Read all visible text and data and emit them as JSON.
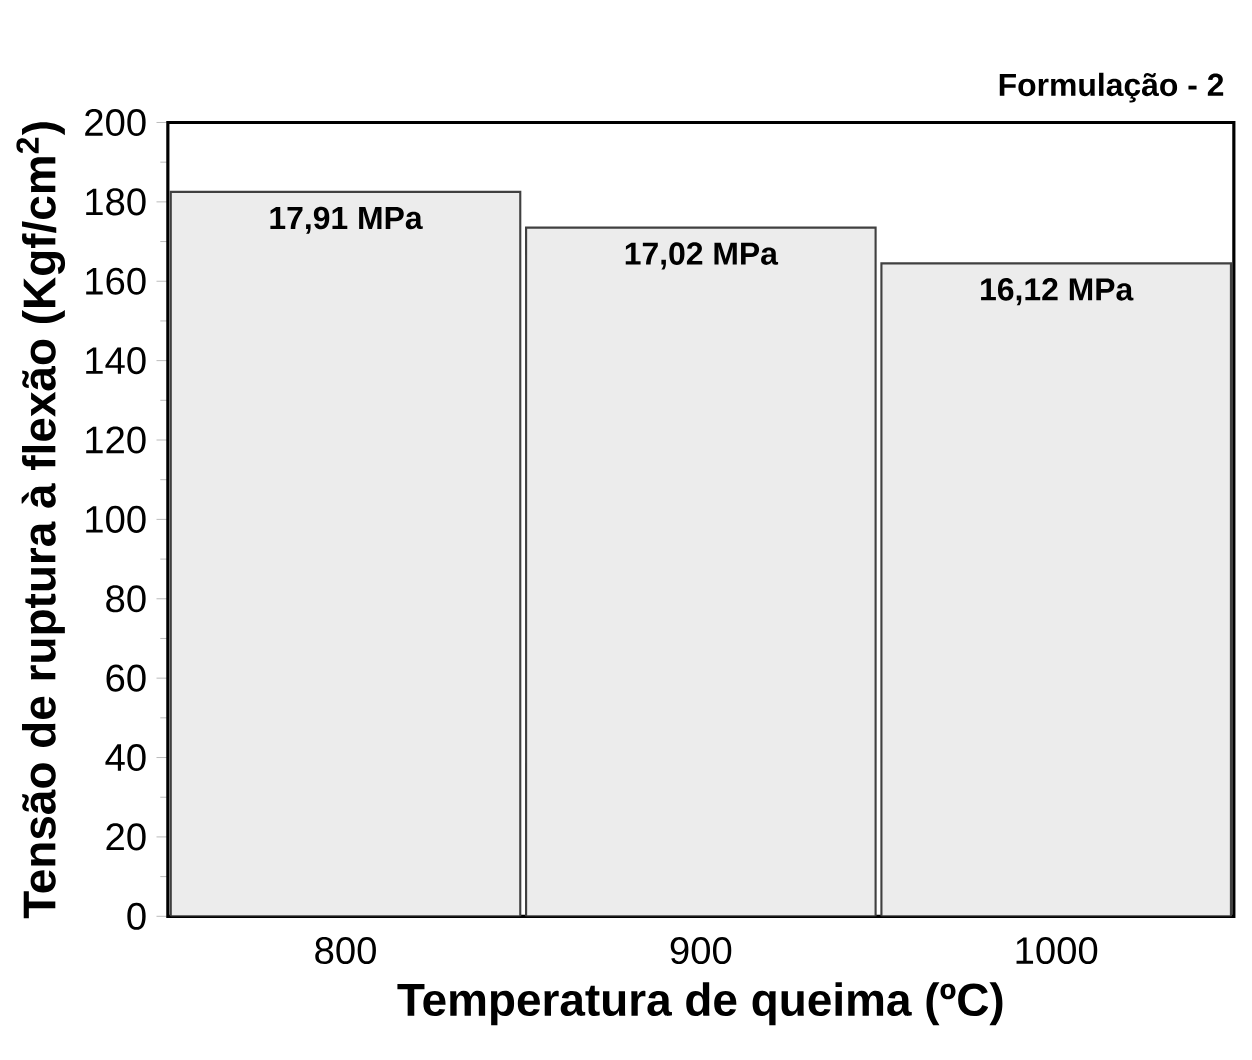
{
  "chart_data": {
    "type": "bar",
    "title": "Formulação - 2",
    "xlabel": "Temperatura de queima (ºC)",
    "ylabel": "Tensão de ruptura à flexão (Kgf/cm$^{2}$)",
    "categories": [
      "800",
      "900",
      "1000"
    ],
    "values": [
      182.5,
      173.5,
      164.5
    ],
    "annotations": [
      {
        "text": "17,91 MPa",
        "x": "800",
        "y": 182.5
      },
      {
        "text": "17,02 MPa",
        "x": "900",
        "y": 173.5
      },
      {
        "text": "16,12 MPa",
        "x": "1000",
        "y": 164.5
      }
    ],
    "color": "#ececec",
    "ylim": [
      0,
      200
    ],
    "yticks": [
      0,
      20,
      40,
      60,
      80,
      100,
      120,
      140,
      160,
      180,
      200
    ]
  }
}
